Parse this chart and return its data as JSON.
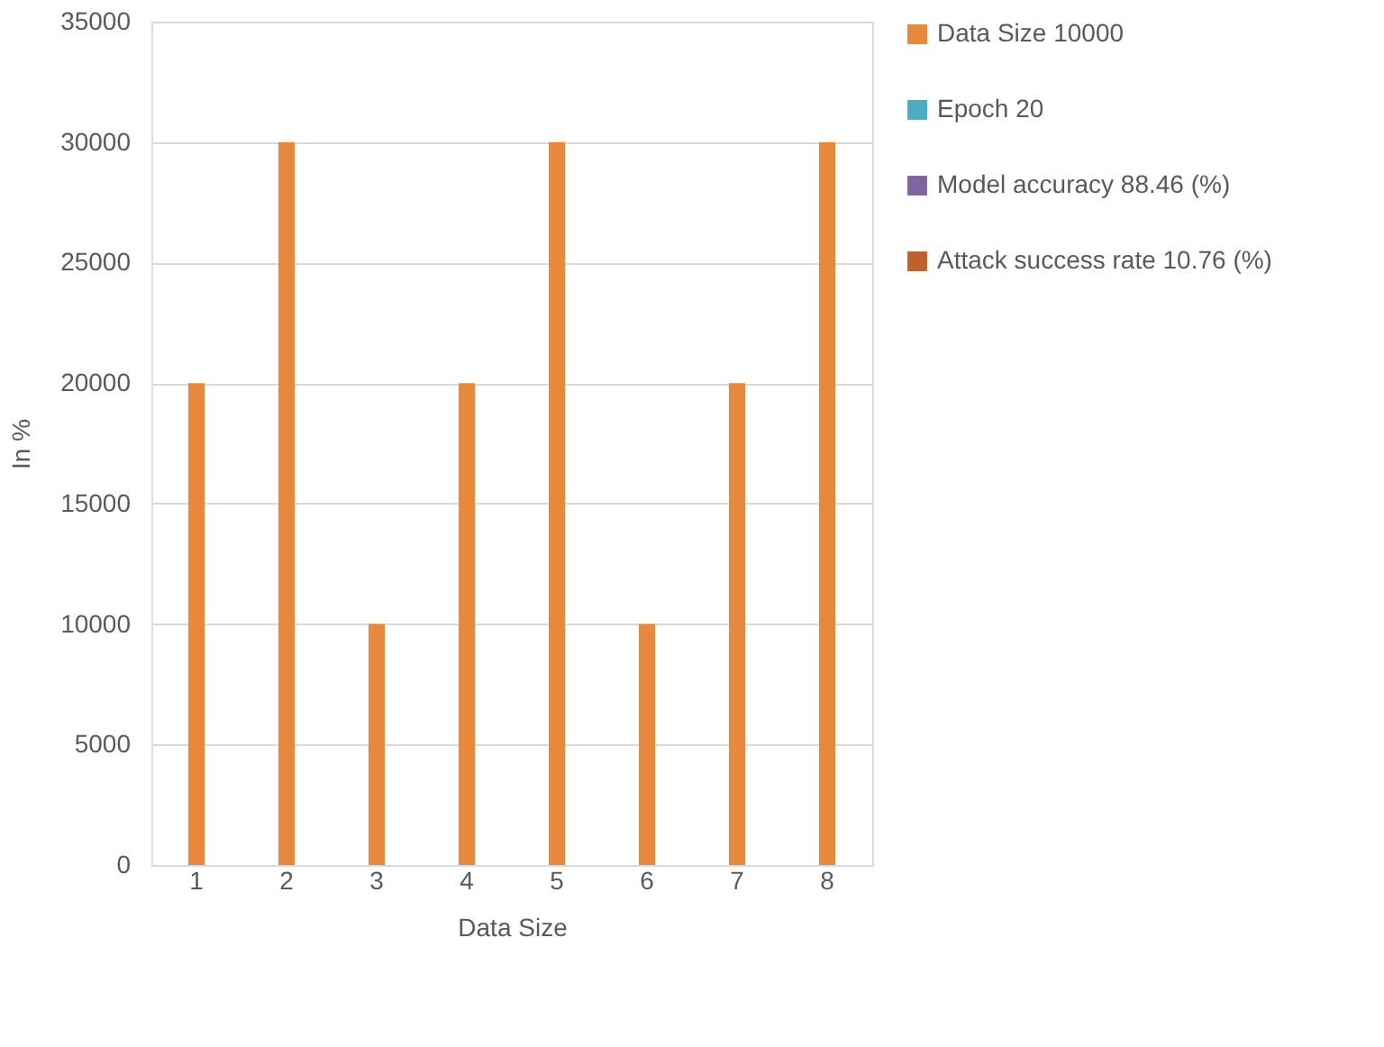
{
  "chart_data": {
    "type": "bar",
    "xlabel": "Data Size",
    "ylabel": "In %",
    "categories": [
      "1",
      "2",
      "3",
      "4",
      "5",
      "6",
      "7",
      "8"
    ],
    "series": [
      {
        "name": "Data Size 10000",
        "color": "#e8883a",
        "values": [
          20000,
          30000,
          10000,
          20000,
          30000,
          10000,
          20000,
          30000
        ]
      },
      {
        "name": "Epoch 20",
        "color": "#4bacc6",
        "values": [
          null,
          null,
          null,
          null,
          null,
          null,
          null,
          null
        ]
      },
      {
        "name": "Model accuracy 88.46 (%)",
        "color": "#8064a2",
        "values": [
          null,
          null,
          null,
          null,
          null,
          null,
          null,
          null
        ]
      },
      {
        "name": "Attack success rate 10.76 (%)",
        "color": "#c0602a",
        "values": [
          null,
          null,
          null,
          null,
          null,
          null,
          null,
          null
        ]
      }
    ],
    "ylim": [
      0,
      35000
    ],
    "yticks": [
      0,
      5000,
      10000,
      15000,
      20000,
      25000,
      30000,
      35000
    ],
    "grid": "y",
    "legend": "right"
  }
}
